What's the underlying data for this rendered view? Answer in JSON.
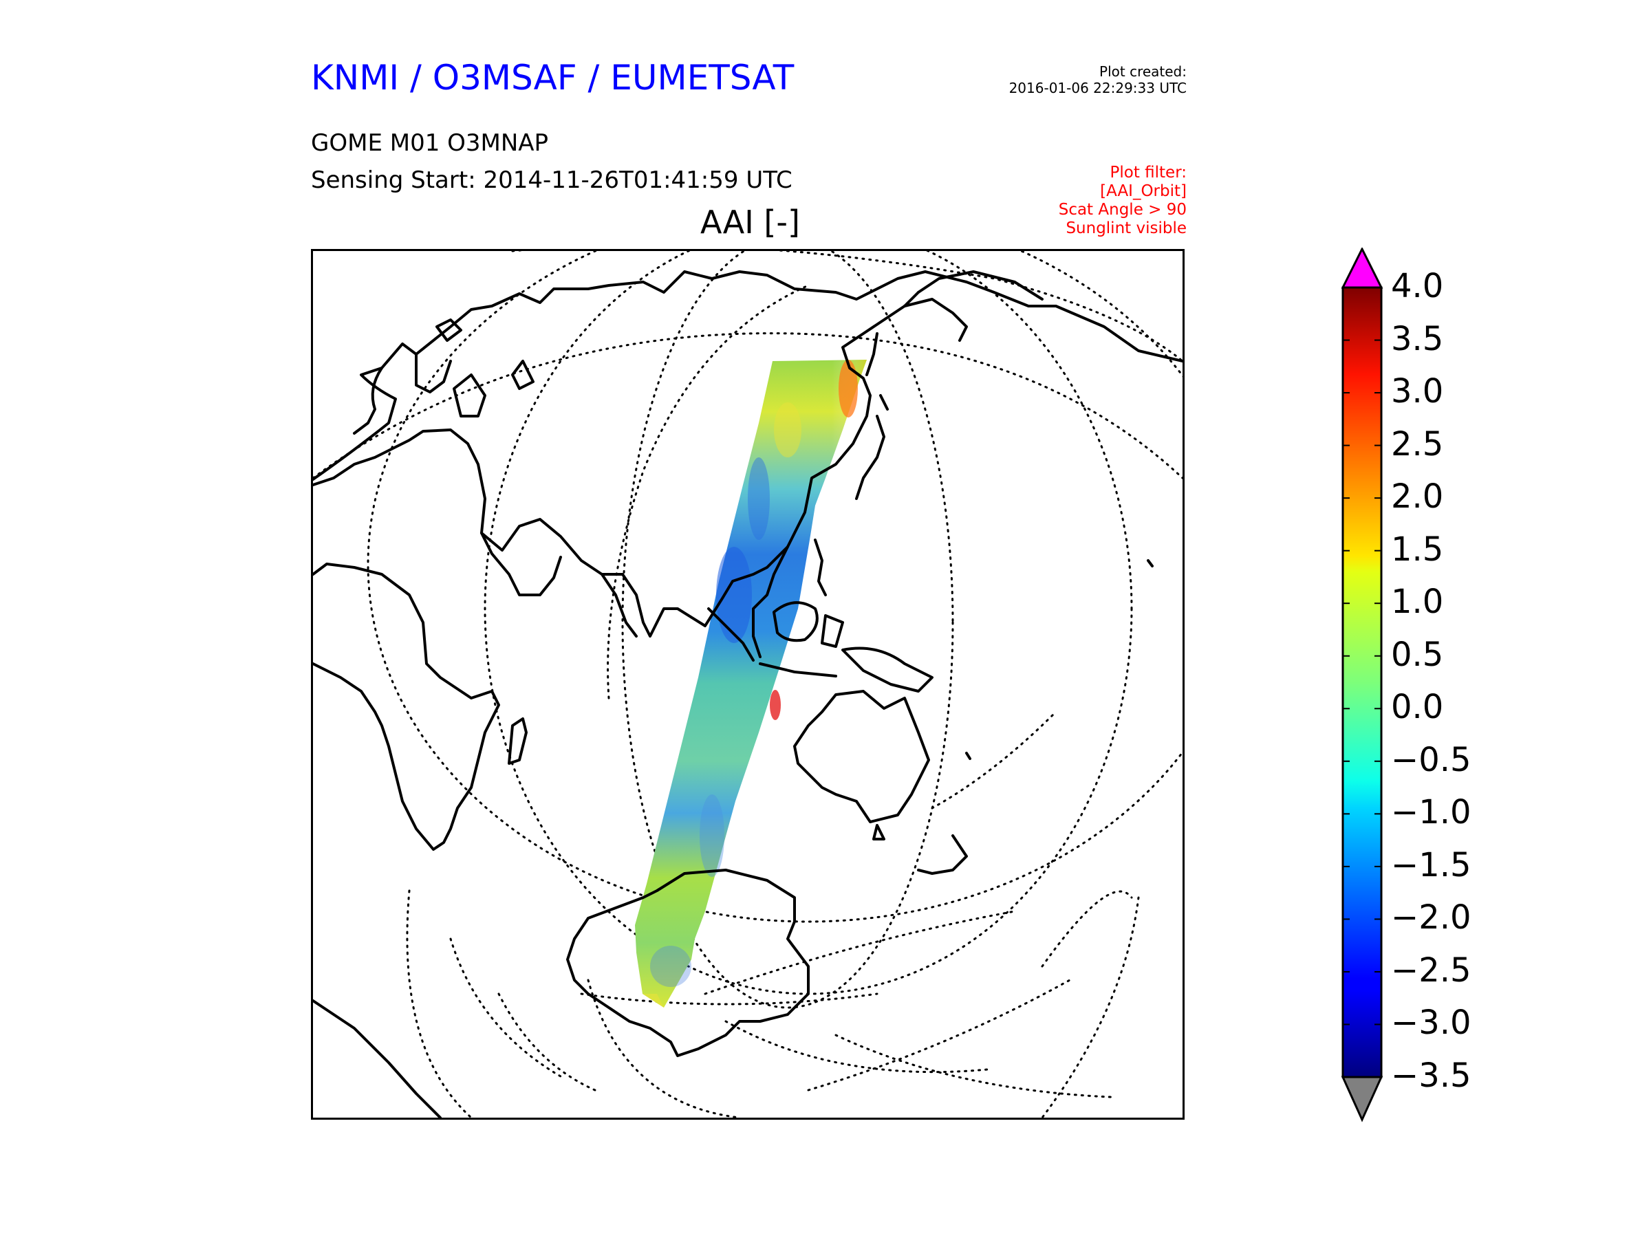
{
  "header": {
    "org_title": "KNMI / O3MSAF / EUMETSAT",
    "plot_created_label": "Plot created:",
    "plot_created_time": "2016-01-06 22:29:33 UTC",
    "product": "GOME M01 O3MNAP",
    "sensing_start": "Sensing Start: 2014-11-26T01:41:59 UTC",
    "plot_title": "AAI [-]"
  },
  "filter": {
    "line1": "Plot filter:",
    "line2": "[AAI_Orbit]",
    "line3": "Scat Angle > 90",
    "line4": "Sunglint visible",
    "color": "#ff0000"
  },
  "colorbar": {
    "min": -3.5,
    "max": 4.0,
    "ticks": [
      "4.0",
      "3.5",
      "3.0",
      "2.5",
      "2.0",
      "1.5",
      "1.0",
      "0.5",
      "0.0",
      "−0.5",
      "−1.0",
      "−1.5",
      "−2.0",
      "−2.5",
      "−3.0",
      "−3.5"
    ],
    "over_color": "#ff00ff",
    "under_color": "#808080",
    "colormap": "jet"
  },
  "map": {
    "projection": "orthographic",
    "graticule": "dotted",
    "coastline_color": "#000000"
  }
}
